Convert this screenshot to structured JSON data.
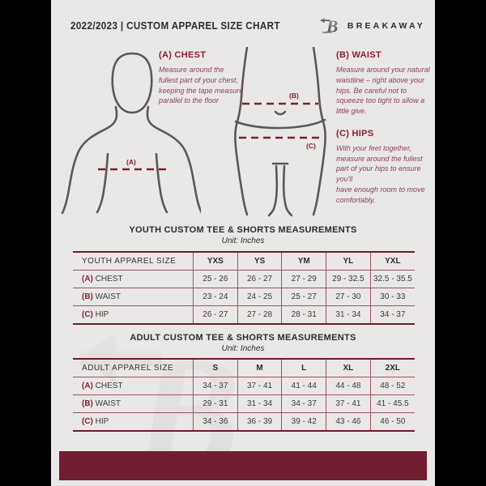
{
  "header": {
    "title": "2022/2023  |  CUSTOM APPAREL SIZE CHART",
    "brand": "BREAKAWAY",
    "logo_letter": "B"
  },
  "guide": {
    "chest_heading": "(A) CHEST",
    "chest_body": "Measure around the fullest part of your chest, keeping the tape measure parallel to the floor",
    "chest_marker": "(A)",
    "waist_heading": "(B) WAIST",
    "waist_body": "Measure around your natural waistline – right above your hips. Be careful not to squeeze too tight to allow a little give.",
    "waist_marker": "(B)",
    "hips_heading": "(C) HIPS",
    "hips_body": "With your feet together, measure around the fullest part of your hips to ensure you'll\nhave enough room to move comfortably.",
    "hips_marker": "(C)"
  },
  "youth": {
    "title": "YOUTH CUSTOM TEE & SHORTS MEASUREMENTS",
    "unit": "Unit: Inches",
    "label_header": "YOUTH APPAREL SIZE",
    "columns": [
      "YXS",
      "YS",
      "YM",
      "YL",
      "YXL"
    ],
    "rows": [
      {
        "prefix": "(A)",
        "label": "CHEST",
        "values": [
          "25 - 26",
          "26 - 27",
          "27 - 29",
          "29 - 32.5",
          "32.5 - 35.5"
        ]
      },
      {
        "prefix": "(B)",
        "label": "WAIST",
        "values": [
          "23 - 24",
          "24 - 25",
          "25 - 27",
          "27 - 30",
          "30 - 33"
        ]
      },
      {
        "prefix": "(C)",
        "label": "HIP",
        "values": [
          "26 - 27",
          "27 - 28",
          "28 - 31",
          "31 - 34",
          "34 - 37"
        ]
      }
    ]
  },
  "adult": {
    "title": "ADULT CUSTOM TEE & SHORTS MEASUREMENTS",
    "unit": "Unit: Inches",
    "label_header": "ADULT APPAREL SIZE",
    "columns": [
      "S",
      "M",
      "L",
      "XL",
      "2XL"
    ],
    "rows": [
      {
        "prefix": "(A)",
        "label": "CHEST",
        "values": [
          "34 - 37",
          "37 - 41",
          "41 - 44",
          "44 - 48",
          "48 - 52"
        ]
      },
      {
        "prefix": "(B)",
        "label": "WAIST",
        "values": [
          "29 - 31",
          "31 - 34",
          "34 - 37",
          "37 - 41",
          "41 - 45.5"
        ]
      },
      {
        "prefix": "(C)",
        "label": "HIP",
        "values": [
          "34 - 36",
          "36 - 39",
          "39 - 42",
          "43 - 46",
          "46 - 50"
        ]
      }
    ]
  },
  "colors": {
    "maroon_bar": "#731d32",
    "maroon_heading": "#8c1c3b",
    "maroon_body_text": "#8d4056",
    "table_border": "#9d5264",
    "outline_gray": "#5a585b",
    "doc_background": "#e9e8e6",
    "edge_background": "#000000"
  }
}
